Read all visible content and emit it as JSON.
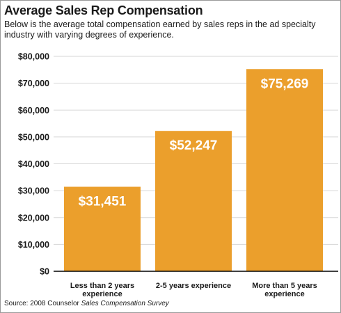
{
  "header": {
    "title": "Average Sales Rep Compensation",
    "subtitle": "Below is the average total compensation earned by sales reps in the ad specialty industry with varying degrees of experience."
  },
  "source": {
    "prefix": "Source: 2008 Counselor ",
    "title": "Sales Compensation Survey"
  },
  "colors": {
    "bar": "#EB9F2C",
    "gridline": "#d6d6d6",
    "axis": "#000000",
    "data_label": "#ffffff"
  },
  "chart_data": {
    "type": "bar",
    "categories": [
      [
        "Less than 2 years",
        "experience"
      ],
      [
        "2-5 years experience"
      ],
      [
        "More than 5 years",
        "experience"
      ]
    ],
    "values": [
      31451,
      52247,
      75269
    ],
    "data_labels": [
      "$31,451",
      "$52,247",
      "$75,269"
    ],
    "y_ticks": [
      0,
      10000,
      20000,
      30000,
      40000,
      50000,
      60000,
      70000,
      80000
    ],
    "y_tick_labels": [
      "$0",
      "$10,000",
      "$20,000",
      "$30,000",
      "$40,000",
      "$50,000",
      "$60,000",
      "$70,000",
      "$80,000"
    ],
    "ylim": [
      0,
      80000
    ],
    "grid": true,
    "legend": "none"
  }
}
